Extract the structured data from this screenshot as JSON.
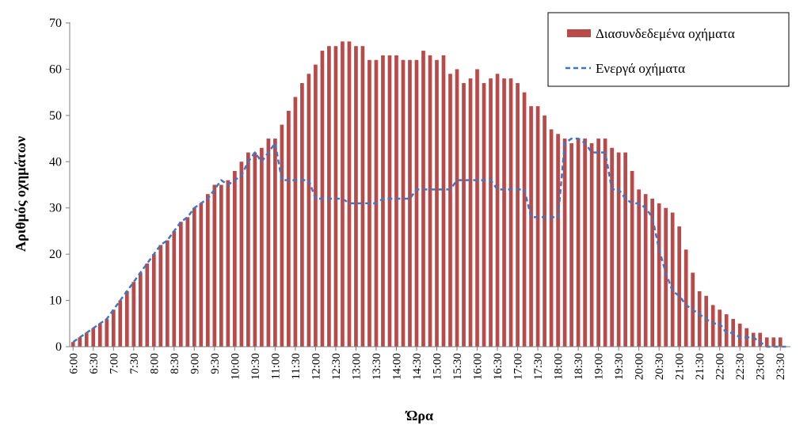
{
  "chart_data": {
    "type": "bar",
    "xlabel": "Ώρα",
    "ylabel": "Αριθμός οχημάτων",
    "ylim": [
      0,
      70
    ],
    "yticks": [
      0,
      10,
      20,
      30,
      40,
      50,
      60,
      70
    ],
    "grid": false,
    "legend_position": "top-right",
    "x_tick_labels": [
      "6:00",
      "6:30",
      "7:00",
      "7:30",
      "8:00",
      "8:30",
      "9:00",
      "9:30",
      "10:00",
      "10:30",
      "11:00",
      "11:30",
      "12:00",
      "12:30",
      "13:00",
      "13:30",
      "14:00",
      "14:30",
      "15:00",
      "15:30",
      "16:00",
      "16:30",
      "17:00",
      "17:30",
      "18:00",
      "18:30",
      "19:00",
      "19:30",
      "20:00",
      "20:30",
      "21:00",
      "21:30",
      "22:00",
      "22:30",
      "23:00",
      "23:30"
    ],
    "time_step_minutes": 10,
    "series": [
      {
        "name": "Διασυνδεδεμένα οχήματα",
        "type": "bar",
        "color": "#b84a4a",
        "values": [
          1,
          2,
          3,
          4,
          5,
          6,
          8,
          10,
          12,
          14,
          16,
          18,
          20,
          22,
          23,
          25,
          27,
          28,
          30,
          31,
          33,
          35,
          35,
          36,
          38,
          40,
          42,
          42,
          43,
          45,
          45,
          48,
          51,
          54,
          57,
          59,
          61,
          64,
          65,
          65,
          66,
          66,
          65,
          65,
          62,
          62,
          63,
          63,
          63,
          62,
          62,
          62,
          64,
          63,
          62,
          63,
          59,
          60,
          57,
          58,
          60,
          57,
          58,
          59,
          58,
          58,
          57,
          55,
          52,
          52,
          50,
          47,
          46,
          45,
          44,
          45,
          45,
          44,
          45,
          45,
          43,
          42,
          42,
          38,
          34,
          33,
          32,
          31,
          30,
          29,
          26,
          21,
          16,
          12,
          11,
          9,
          8,
          7,
          6,
          5,
          4,
          3,
          3,
          2,
          2,
          2,
          0
        ]
      },
      {
        "name": "Ενεργά οχήματα",
        "type": "line",
        "style": "dashed",
        "color": "#3f77c4",
        "values": [
          1,
          2,
          3,
          4,
          5,
          6,
          8,
          10,
          12,
          14,
          16,
          18,
          20,
          22,
          23,
          25,
          27,
          28,
          30,
          31,
          32,
          34,
          36,
          35,
          36,
          37,
          40,
          42,
          40,
          42,
          44,
          36,
          36,
          36,
          36,
          36,
          32,
          32,
          32,
          32,
          32,
          31,
          31,
          31,
          31,
          31,
          32,
          32,
          32,
          32,
          32,
          34,
          34,
          34,
          34,
          34,
          34,
          36,
          36,
          36,
          36,
          36,
          36,
          34,
          34,
          34,
          34,
          34,
          28,
          28,
          28,
          28,
          28,
          44,
          45,
          45,
          44,
          42,
          42,
          42,
          34,
          34,
          32,
          31,
          31,
          30,
          28,
          21,
          16,
          12,
          11,
          9,
          8,
          7,
          6,
          5,
          5,
          3,
          3,
          2,
          2,
          2,
          1,
          0,
          0,
          0,
          0
        ]
      }
    ]
  }
}
